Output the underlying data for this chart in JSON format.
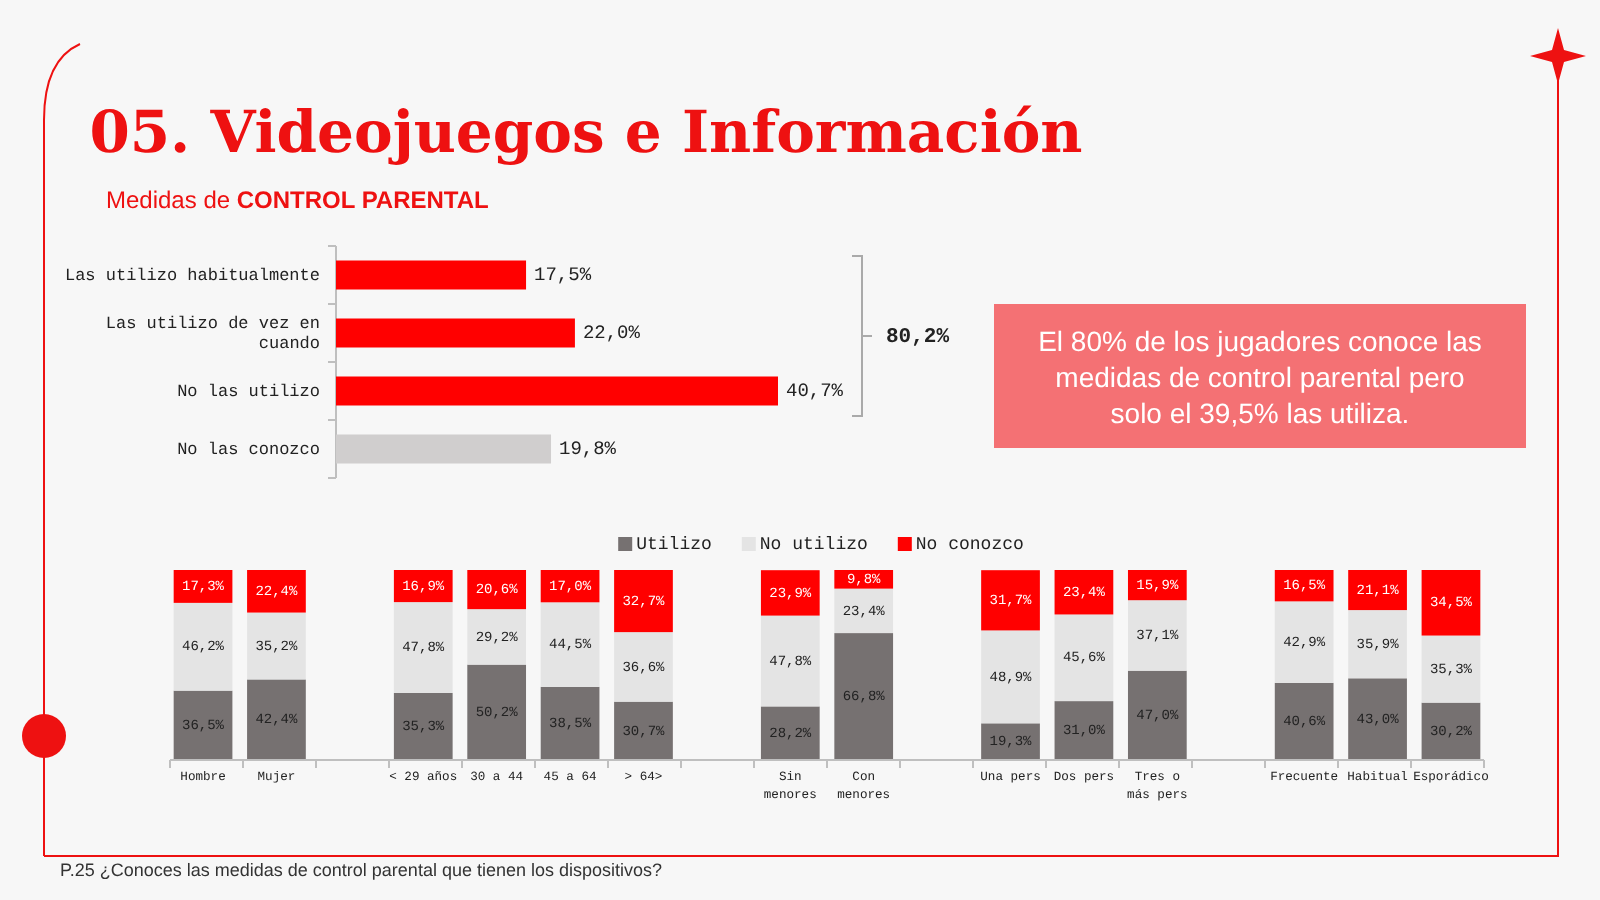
{
  "chart_data": [
    {
      "type": "bar",
      "orientation": "horizontal",
      "title": "05. Videojuegos e Información",
      "subtitle": "Medidas de CONTROL PARENTAL",
      "categories": [
        "Las utilizo habitualmente",
        "Las utilizo de vez en cuando",
        "No las utilizo",
        "No las conozco"
      ],
      "values": [
        17.5,
        22.0,
        40.7,
        19.8
      ],
      "colors": [
        "#ff0000",
        "#ff0000",
        "#ff0000",
        "#d0cece"
      ],
      "value_labels": [
        "17,5%",
        "22,0%",
        "40,7%",
        "19,8%"
      ],
      "annotations": [
        "80,2%",
        "El 80% de los jugadores conoce las medidas de control parental pero solo el 39,5% las utiliza."
      ]
    },
    {
      "type": "bar",
      "stacked": true,
      "legend": "top",
      "categories": [
        "Hombre",
        "Mujer",
        null,
        "< 29 años",
        "30 a 44",
        "45 a 64",
        "> 64>",
        null,
        "Sin menores",
        "Con menores",
        null,
        "Una pers",
        "Dos pers",
        "Tres o más pers",
        null,
        "Frecuente",
        "Habitual",
        "Esporádico"
      ],
      "series": [
        {
          "name": "Utilizo",
          "color": "#767171",
          "values": [
            36.5,
            42.4,
            null,
            35.3,
            50.2,
            38.5,
            30.7,
            null,
            28.2,
            66.8,
            null,
            19.3,
            31.0,
            47.0,
            null,
            40.6,
            43.0,
            30.2
          ],
          "value_labels": [
            "36,5%",
            "42,4%",
            null,
            "35,3%",
            "50,2%",
            "38,5%",
            "30,7%",
            null,
            "28,2%",
            "66,8%",
            null,
            "19,3%",
            "31,0%",
            "47,0%",
            null,
            "40,6%",
            "43,0%",
            "30,2%"
          ]
        },
        {
          "name": "No utilizo",
          "color": "#e4e4e4",
          "values": [
            46.2,
            35.2,
            null,
            47.8,
            29.2,
            44.5,
            36.6,
            null,
            47.8,
            23.4,
            null,
            48.9,
            45.6,
            37.1,
            null,
            42.9,
            35.9,
            35.3
          ],
          "value_labels": [
            "46,2%",
            "35,2%",
            null,
            "47,8%",
            "29,2%",
            "44,5%",
            "36,6%",
            null,
            "47,8%",
            "23,4%",
            null,
            "48,9%",
            "45,6%",
            "37,1%",
            null,
            "42,9%",
            "35,9%",
            "35,3%"
          ]
        },
        {
          "name": "No conozco",
          "color": "#ff0000",
          "values": [
            17.3,
            22.4,
            null,
            16.9,
            20.6,
            17.0,
            32.7,
            null,
            23.9,
            9.8,
            null,
            31.7,
            23.4,
            15.9,
            null,
            16.5,
            21.1,
            34.5
          ],
          "value_labels": [
            "17,3%",
            "22,4%",
            null,
            "16,9%",
            "20,6%",
            "17,0%",
            "32,7%",
            null,
            "23,9%",
            "9,8%",
            null,
            "31,7%",
            "23,4%",
            "15,9%",
            null,
            "16,5%",
            "21,1%",
            "34,5%"
          ]
        }
      ],
      "annotations": [
        "P.25 ¿Conoces las medidas de control parental que tienen los dispositivos?"
      ]
    }
  ]
}
